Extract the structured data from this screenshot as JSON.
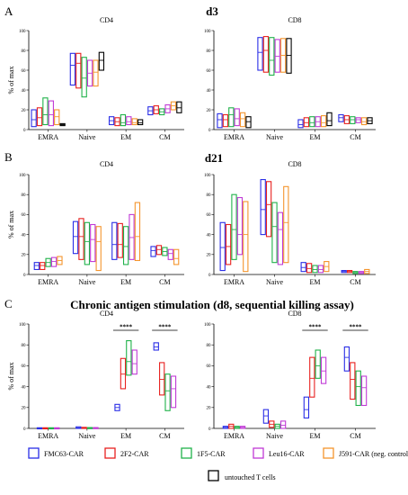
{
  "colors": {
    "FMC63-CAR": "#2a2ee6",
    "2F2-CAR": "#e8211f",
    "1F5-CAR": "#20b24a",
    "Leu16-CAR": "#c03ad6",
    "J591-CAR (neg. control)": "#f4952d",
    "untouched T cells": "#000000"
  },
  "legend": {
    "items": [
      "FMC63-CAR",
      "2F2-CAR",
      "1F5-CAR",
      "Leu16-CAR",
      "J591-CAR (neg. control)"
    ],
    "extra": "untouched T cells"
  },
  "chart_data": [
    {
      "type": "floating-bar",
      "panel": "A",
      "title": "CD4",
      "group_title": "d3",
      "ylabel": "% of max",
      "ylim": [
        0,
        100
      ],
      "yticks": [
        0,
        20,
        40,
        60,
        80,
        100
      ],
      "categories": [
        "EMRA",
        "Naive",
        "EM",
        "CM"
      ],
      "series": [
        {
          "name": "FMC63-CAR",
          "values": [
            [
              3,
              10,
              20
            ],
            [
              45,
              65,
              77
            ],
            [
              5,
              9,
              13
            ],
            [
              15,
              19,
              23
            ]
          ]
        },
        {
          "name": "2F2-CAR",
          "values": [
            [
              4,
              12,
              22
            ],
            [
              42,
              67,
              77
            ],
            [
              4,
              8,
              12
            ],
            [
              16,
              20,
              24
            ]
          ]
        },
        {
          "name": "1F5-CAR",
          "values": [
            [
              5,
              15,
              32
            ],
            [
              33,
              52,
              73
            ],
            [
              4,
              7,
              15
            ],
            [
              15,
              18,
              21
            ]
          ]
        },
        {
          "name": "Leu16-CAR",
          "values": [
            [
              4,
              15,
              29
            ],
            [
              44,
              57,
              70
            ],
            [
              5,
              8,
              13
            ],
            [
              17,
              21,
              25
            ]
          ]
        },
        {
          "name": "J591-CAR (neg. control)",
          "values": [
            [
              5,
              13,
              20
            ],
            [
              44,
              58,
              70
            ],
            [
              5,
              7,
              11
            ],
            [
              20,
              24,
              28
            ]
          ]
        },
        {
          "name": "untouched T cells",
          "values": [
            [
              4,
              5,
              6
            ],
            [
              60,
              70,
              78
            ],
            [
              5,
              7,
              10
            ],
            [
              17,
              22,
              28
            ]
          ]
        }
      ]
    },
    {
      "type": "floating-bar",
      "panel": "A",
      "title": "CD8",
      "group_title": "d3",
      "ylabel": "",
      "ylim": [
        0,
        100
      ],
      "yticks": [
        0,
        20,
        40,
        60,
        80,
        100
      ],
      "categories": [
        "EMRA",
        "Naive",
        "EM",
        "CM"
      ],
      "series": [
        {
          "name": "FMC63-CAR",
          "values": [
            [
              2,
              10,
              16
            ],
            [
              60,
              78,
              93
            ],
            [
              2,
              5,
              10
            ],
            [
              8,
              12,
              15
            ]
          ]
        },
        {
          "name": "2F2-CAR",
          "values": [
            [
              3,
              10,
              15
            ],
            [
              58,
              80,
              94
            ],
            [
              3,
              7,
              12
            ],
            [
              6,
              10,
              14
            ]
          ]
        },
        {
          "name": "1F5-CAR",
          "values": [
            [
              3,
              15,
              22
            ],
            [
              55,
              70,
              93
            ],
            [
              3,
              7,
              13
            ],
            [
              6,
              10,
              13
            ]
          ]
        },
        {
          "name": "Leu16-CAR",
          "values": [
            [
              4,
              11,
              21
            ],
            [
              58,
              74,
              91
            ],
            [
              3,
              8,
              13
            ],
            [
              7,
              10,
              12
            ]
          ]
        },
        {
          "name": "J591-CAR (neg. control)",
          "values": [
            [
              3,
              11,
              17
            ],
            [
              58,
              75,
              92
            ],
            [
              3,
              7,
              14
            ],
            [
              5,
              8,
              12
            ]
          ]
        },
        {
          "name": "untouched T cells",
          "values": [
            [
              2,
              8,
              13
            ],
            [
              57,
              75,
              92
            ],
            [
              4,
              9,
              17
            ],
            [
              6,
              9,
              12
            ]
          ]
        }
      ]
    },
    {
      "type": "floating-bar",
      "panel": "B",
      "title": "CD4",
      "group_title": "d21",
      "ylabel": "% of max",
      "ylim": [
        0,
        100
      ],
      "yticks": [
        0,
        20,
        40,
        60,
        80,
        100
      ],
      "categories": [
        "EMRA",
        "Naive",
        "EM",
        "CM"
      ],
      "series": [
        {
          "name": "FMC63-CAR",
          "values": [
            [
              5,
              9,
              12
            ],
            [
              21,
              38,
              53
            ],
            [
              15,
              30,
              52
            ],
            [
              18,
              24,
              28
            ]
          ]
        },
        {
          "name": "2F2-CAR",
          "values": [
            [
              5,
              9,
              12
            ],
            [
              15,
              38,
              56
            ],
            [
              17,
              30,
              51
            ],
            [
              20,
              25,
              29
            ]
          ]
        },
        {
          "name": "1F5-CAR",
          "values": [
            [
              8,
              12,
              16
            ],
            [
              10,
              33,
              52
            ],
            [
              10,
              28,
              48
            ],
            [
              19,
              23,
              27
            ]
          ]
        },
        {
          "name": "Leu16-CAR",
          "values": [
            [
              8,
              13,
              17
            ],
            [
              13,
              35,
              50
            ],
            [
              15,
              37,
              60
            ],
            [
              15,
              21,
              25
            ]
          ]
        },
        {
          "name": "J591-CAR (neg. control)",
          "values": [
            [
              10,
              14,
              18
            ],
            [
              4,
              33,
              48
            ],
            [
              14,
              38,
              72
            ],
            [
              10,
              16,
              25
            ]
          ]
        }
      ]
    },
    {
      "type": "floating-bar",
      "panel": "B",
      "title": "CD8",
      "group_title": "d21",
      "ylabel": "",
      "ylim": [
        0,
        100
      ],
      "yticks": [
        0,
        20,
        40,
        60,
        80,
        100
      ],
      "categories": [
        "EMRA",
        "Naive",
        "EM",
        "CM"
      ],
      "series": [
        {
          "name": "FMC63-CAR",
          "values": [
            [
              4,
              27,
              52
            ],
            [
              40,
              65,
              95
            ],
            [
              3,
              7,
              12
            ],
            [
              2,
              3,
              4
            ]
          ]
        },
        {
          "name": "2F2-CAR",
          "values": [
            [
              10,
              28,
              50
            ],
            [
              38,
              70,
              93
            ],
            [
              2,
              6,
              11
            ],
            [
              2,
              3,
              4
            ]
          ]
        },
        {
          "name": "1F5-CAR",
          "values": [
            [
              15,
              45,
              80
            ],
            [
              12,
              48,
              72
            ],
            [
              2,
              5,
              9
            ],
            [
              1,
              2,
              3
            ]
          ]
        },
        {
          "name": "Leu16-CAR",
          "values": [
            [
              20,
              40,
              77
            ],
            [
              10,
              45,
              62
            ],
            [
              2,
              5,
              9
            ],
            [
              1,
              2,
              3
            ]
          ]
        },
        {
          "name": "J591-CAR (neg. control)",
          "values": [
            [
              3,
              40,
              73
            ],
            [
              12,
              52,
              88
            ],
            [
              3,
              8,
              13
            ],
            [
              1,
              3,
              5
            ]
          ]
        }
      ]
    },
    {
      "type": "floating-bar",
      "panel": "C",
      "title": "CD4",
      "group_title": "Chronic antigen stimulation (d8, sequential killing assay)",
      "ylabel": "% of max",
      "ylim": [
        0,
        100
      ],
      "yticks": [
        0,
        20,
        40,
        60,
        80,
        100
      ],
      "categories": [
        "EMRA",
        "Naive",
        "EM",
        "CM"
      ],
      "significance": [
        {
          "between": [
            "EM",
            "CM"
          ],
          "label": "****",
          "span": "EM"
        },
        {
          "between": [
            "EM",
            "CM"
          ],
          "label": "****",
          "span": "CM"
        }
      ],
      "series": [
        {
          "name": "FMC63-CAR",
          "values": [
            [
              0,
              0.3,
              0.6
            ],
            [
              0,
              0.5,
              1.5
            ],
            [
              17,
              20,
              23
            ],
            [
              75,
              78,
              82
            ]
          ]
        },
        {
          "name": "2F2-CAR",
          "values": [
            [
              0,
              0.3,
              0.6
            ],
            [
              0,
              0.4,
              1.0
            ],
            [
              38,
              52,
              67
            ],
            [
              32,
              47,
              63
            ]
          ]
        },
        {
          "name": "1F5-CAR",
          "values": [
            [
              0,
              0.3,
              0.6
            ],
            [
              0,
              0.3,
              0.8
            ],
            [
              51,
              64,
              84
            ],
            [
              17,
              36,
              52
            ]
          ]
        },
        {
          "name": "Leu16-CAR",
          "values": [
            [
              0,
              0.3,
              0.6
            ],
            [
              0,
              0.3,
              0.8
            ],
            [
              52,
              62,
              75
            ],
            [
              20,
              38,
              50
            ]
          ]
        }
      ]
    },
    {
      "type": "floating-bar",
      "panel": "C",
      "title": "CD8",
      "group_title": "Chronic antigen stimulation (d8, sequential killing assay)",
      "ylabel": "",
      "ylim": [
        0,
        100
      ],
      "yticks": [
        0,
        20,
        40,
        60,
        80,
        100
      ],
      "categories": [
        "EMRA",
        "Naive",
        "EM",
        "CM"
      ],
      "significance": [
        {
          "between": [
            "EM",
            "CM"
          ],
          "label": "****",
          "span": "EM"
        },
        {
          "between": [
            "EM",
            "CM"
          ],
          "label": "****",
          "span": "CM"
        }
      ],
      "series": [
        {
          "name": "FMC63-CAR",
          "values": [
            [
              0,
              1,
              2
            ],
            [
              5,
              12,
              18
            ],
            [
              10,
              18,
              30
            ],
            [
              55,
              68,
              78
            ]
          ]
        },
        {
          "name": "2F2-CAR",
          "values": [
            [
              0,
              2,
              4
            ],
            [
              1,
              4,
              7
            ],
            [
              30,
              48,
              68
            ],
            [
              28,
              47,
              63
            ]
          ]
        },
        {
          "name": "1F5-CAR",
          "values": [
            [
              0,
              1,
              2
            ],
            [
              0,
              2,
              4
            ],
            [
              48,
              60,
              75
            ],
            [
              22,
              40,
              55
            ]
          ]
        },
        {
          "name": "Leu16-CAR",
          "values": [
            [
              0,
              1,
              2
            ],
            [
              0,
              3,
              7
            ],
            [
              43,
              55,
              68
            ],
            [
              22,
              39,
              50
            ]
          ]
        }
      ]
    }
  ],
  "panels": [
    {
      "letter": "A",
      "title": "d3"
    },
    {
      "letter": "B",
      "title": "d21"
    },
    {
      "letter": "C",
      "title": "Chronic antigen stimulation (d8, sequential killing assay)"
    }
  ]
}
